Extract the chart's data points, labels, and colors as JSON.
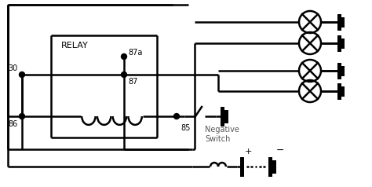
{
  "bg_color": "#ffffff",
  "line_color": "#000000",
  "fig_w": 4.74,
  "fig_h": 2.38,
  "dpi": 100,
  "lw": 1.8,
  "relay_label": "RELAY",
  "neg_switch_label": "Negative\nSwitch",
  "pin_30": "30",
  "pin_86": "86",
  "pin_87": "87",
  "pin_87a": "87a",
  "pin_85": "85",
  "plus_label": "+",
  "minus_label": "−"
}
